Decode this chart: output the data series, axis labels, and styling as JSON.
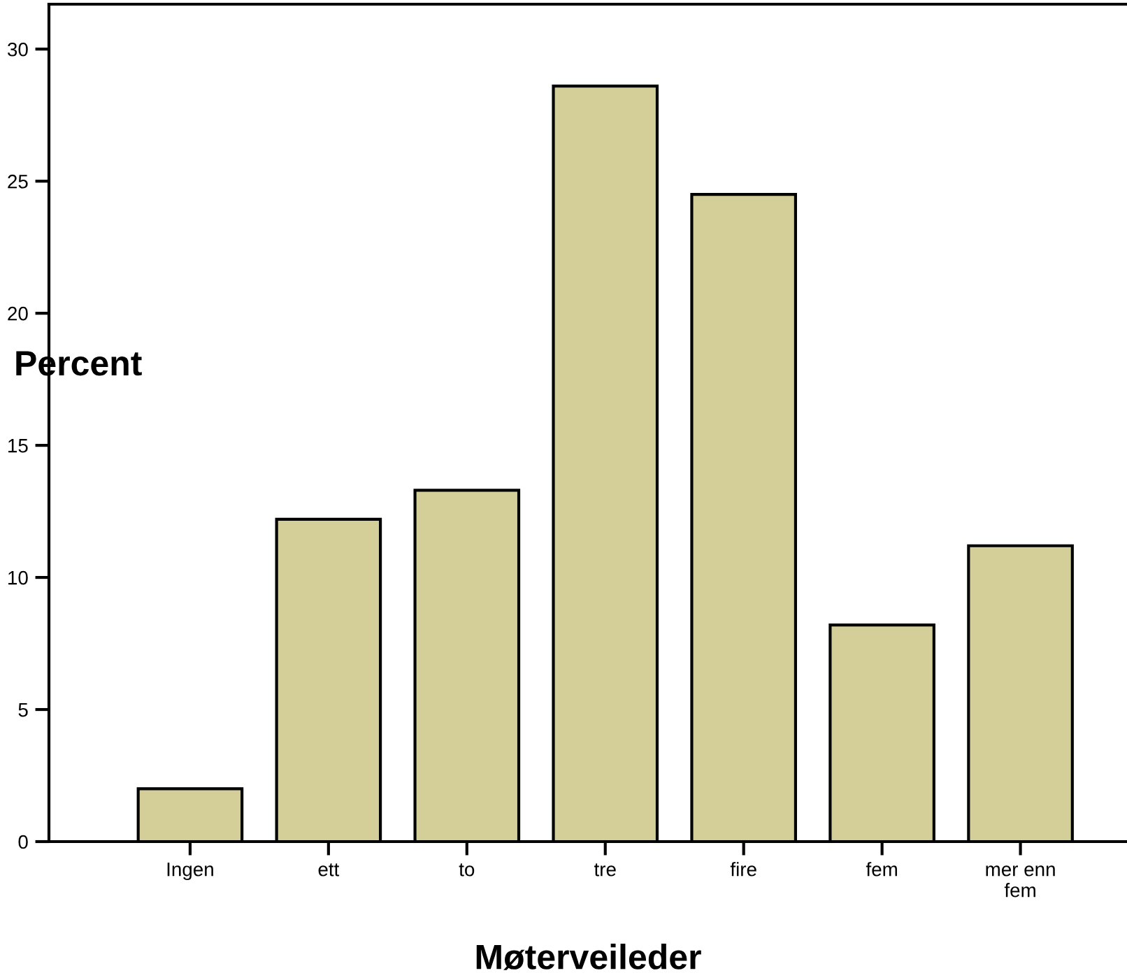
{
  "chart_data": {
    "type": "bar",
    "xlabel": "Møterveileder",
    "ylabel": "Percent",
    "categories": [
      "Ingen",
      "ett",
      "to",
      "tre",
      "fire",
      "fem",
      "mer enn\nfem"
    ],
    "values": [
      2.0,
      12.2,
      13.3,
      28.6,
      24.5,
      8.2,
      11.2
    ],
    "color": "#d4cf99",
    "ylim": [
      0,
      31.7
    ],
    "yticks": [
      0,
      5,
      10,
      15,
      20,
      25,
      30
    ],
    "grid": false,
    "legend": false
  }
}
